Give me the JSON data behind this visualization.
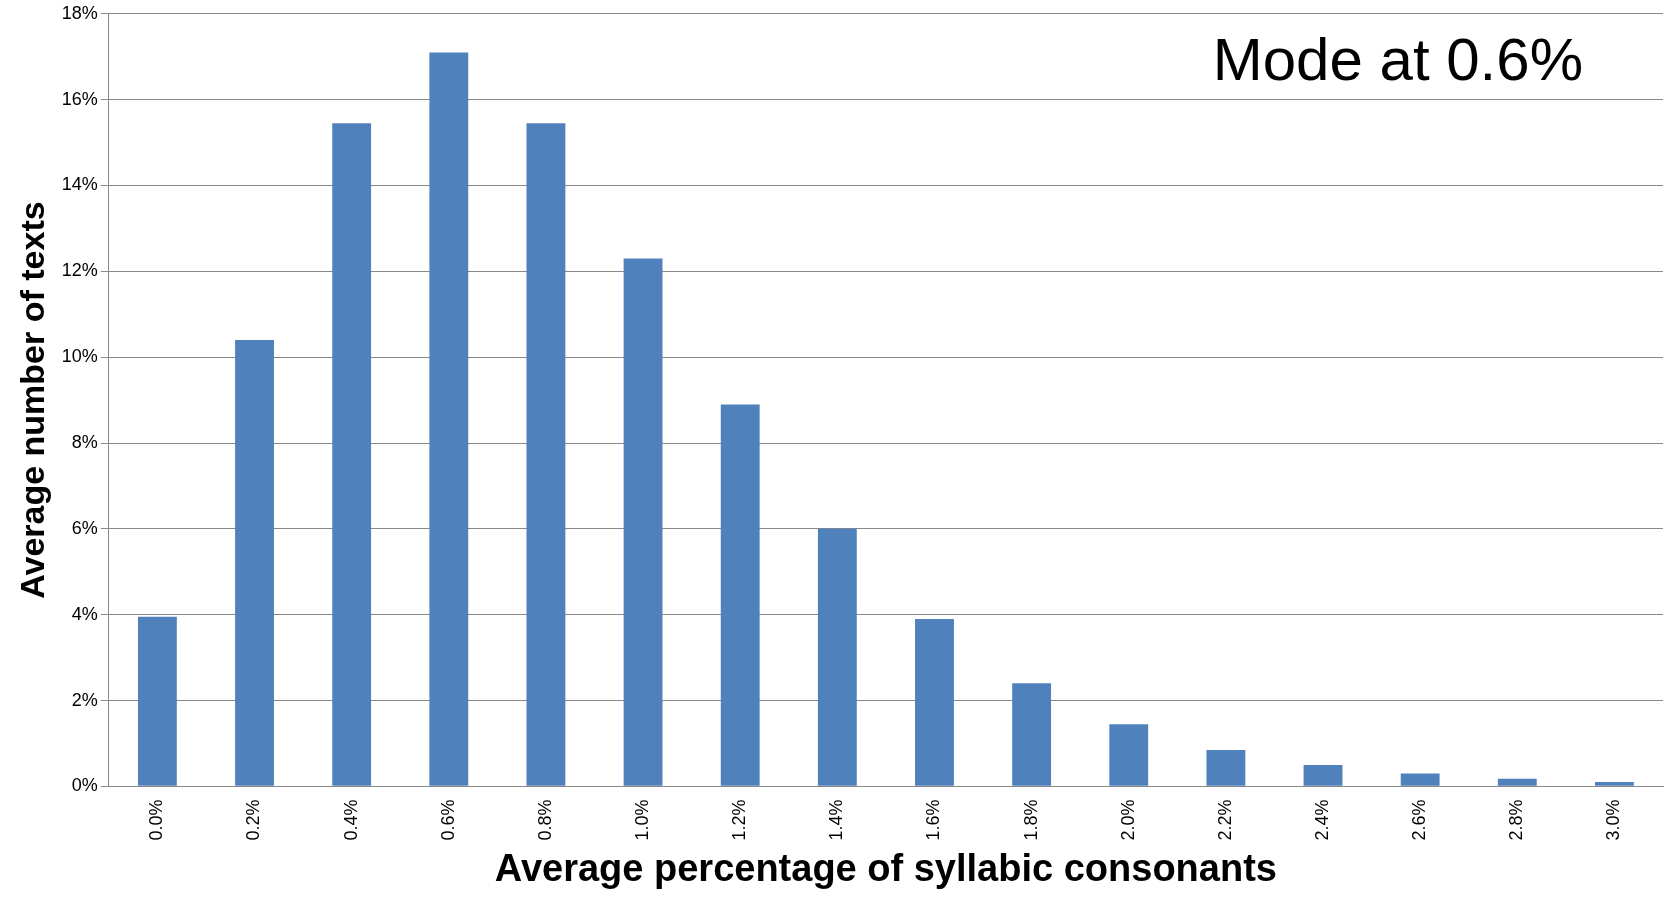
{
  "chart_data": {
    "type": "bar",
    "xlabel": "Average percentage of syllabic consonants",
    "ylabel": "Average number of texts",
    "categories": [
      "0.0%",
      "0.2%",
      "0.4%",
      "0.6%",
      "0.8%",
      "1.0%",
      "1.2%",
      "1.4%",
      "1.6%",
      "1.8%",
      "2.0%",
      "2.2%",
      "2.4%",
      "2.6%",
      "2.8%",
      "3.0%"
    ],
    "values": [
      3.95,
      10.4,
      15.45,
      17.1,
      15.45,
      12.3,
      8.9,
      6.0,
      3.9,
      2.4,
      1.45,
      0.85,
      0.5,
      0.3,
      0.18,
      0.1
    ],
    "color": "#4f81bd",
    "ylim": [
      0,
      18
    ],
    "yticks": [
      {
        "value": 0,
        "label": "0%"
      },
      {
        "value": 2,
        "label": "2%"
      },
      {
        "value": 4,
        "label": "4%"
      },
      {
        "value": 6,
        "label": "6%"
      },
      {
        "value": 8,
        "label": "8%"
      },
      {
        "value": 10,
        "label": "10%"
      },
      {
        "value": 12,
        "label": "12%"
      },
      {
        "value": 14,
        "label": "14%"
      },
      {
        "value": 16,
        "label": "16%"
      },
      {
        "value": 18,
        "label": "18%"
      }
    ],
    "grid": "y",
    "annotations": [
      "Mode at 0.6%"
    ]
  }
}
